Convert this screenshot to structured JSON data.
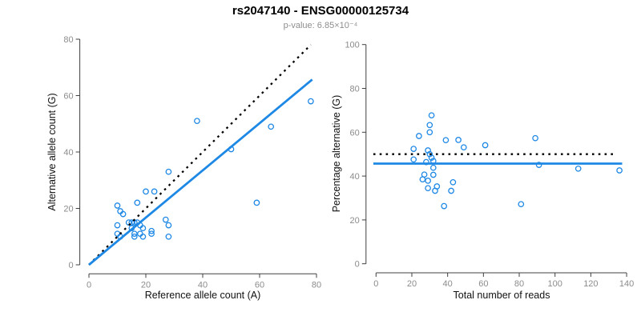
{
  "header": {
    "title": "rs2047140 - ENSG00000125734",
    "subtitle": "p-value: 6.85×10⁻⁴"
  },
  "colors": {
    "point_blue": "#1E88E5",
    "fit_line_blue": "#1E88E5",
    "reference_line_black": "#000000",
    "axis_gray": "#404040",
    "tick_label_gray": "#8c8c8c",
    "subtitle_gray": "#8e8e8e"
  },
  "chart_data": [
    {
      "type": "scatter",
      "panel": "left",
      "title_share": "rs2047140 - ENSG00000125734",
      "xlabel": "Reference allele count (A)",
      "ylabel": "Alternative allele count (G)",
      "xlim": [
        0,
        80
      ],
      "ylim": [
        0,
        80
      ],
      "xticks": [
        0,
        20,
        40,
        60,
        80
      ],
      "yticks": [
        0,
        20,
        40,
        60,
        80
      ],
      "grid": false,
      "points": [
        [
          10,
          21
        ],
        [
          11,
          19
        ],
        [
          12,
          18
        ],
        [
          17,
          22
        ],
        [
          20,
          26
        ],
        [
          23,
          26
        ],
        [
          28,
          33
        ],
        [
          38,
          51
        ],
        [
          50,
          41
        ],
        [
          64,
          49
        ],
        [
          78,
          58
        ],
        [
          59,
          22
        ],
        [
          10,
          14
        ],
        [
          10,
          11
        ],
        [
          11,
          10
        ],
        [
          14,
          15
        ],
        [
          15,
          15
        ],
        [
          16,
          15
        ],
        [
          15,
          13
        ],
        [
          17,
          15
        ],
        [
          18,
          14
        ],
        [
          19,
          13
        ],
        [
          16,
          11
        ],
        [
          16,
          10
        ],
        [
          18,
          11
        ],
        [
          19,
          10
        ],
        [
          22,
          12
        ],
        [
          22,
          11
        ],
        [
          27,
          16
        ],
        [
          28,
          14
        ],
        [
          28,
          10
        ]
      ],
      "identity_line": {
        "style": "dotted",
        "x1": 0,
        "y1": 0,
        "x2": 78,
        "y2": 78
      },
      "fit_line": {
        "style": "solid",
        "x1": 0,
        "y1": 0,
        "x2": 78.5,
        "y2": 65.7
      }
    },
    {
      "type": "scatter",
      "panel": "right",
      "xlabel": "Total number of reads",
      "ylabel": "Percentage alternative (G)",
      "xlim": [
        0,
        140
      ],
      "ylim": [
        0,
        100
      ],
      "xticks": [
        0,
        20,
        40,
        60,
        80,
        100,
        120,
        140
      ],
      "yticks": [
        0,
        20,
        40,
        60,
        80,
        100
      ],
      "grid": false,
      "points": [
        [
          31,
          67.7
        ],
        [
          30,
          63.3
        ],
        [
          30,
          60
        ],
        [
          39,
          56.4
        ],
        [
          46,
          56.5
        ],
        [
          49,
          53.1
        ],
        [
          61,
          54.1
        ],
        [
          89,
          57.3
        ],
        [
          91,
          45.1
        ],
        [
          113,
          43.4
        ],
        [
          136,
          42.6
        ],
        [
          81,
          27.2
        ],
        [
          24,
          58.3
        ],
        [
          21,
          52.4
        ],
        [
          21,
          47.6
        ],
        [
          29,
          51.7
        ],
        [
          30,
          50
        ],
        [
          31,
          48.4
        ],
        [
          28,
          46.4
        ],
        [
          32,
          46.9
        ],
        [
          32,
          43.8
        ],
        [
          32,
          40.6
        ],
        [
          27,
          40.7
        ],
        [
          26,
          38.5
        ],
        [
          29,
          37.9
        ],
        [
          29,
          34.5
        ],
        [
          34,
          35.3
        ],
        [
          33,
          33.3
        ],
        [
          43,
          37.2
        ],
        [
          42,
          33.3
        ],
        [
          38,
          26.3
        ]
      ],
      "expected_line": {
        "style": "dotted",
        "y": 50,
        "x1": -1.5,
        "x2": 134
      },
      "fit_line": {
        "style": "solid",
        "y": 45.7,
        "x1": -1.5,
        "x2": 137.5
      }
    }
  ]
}
